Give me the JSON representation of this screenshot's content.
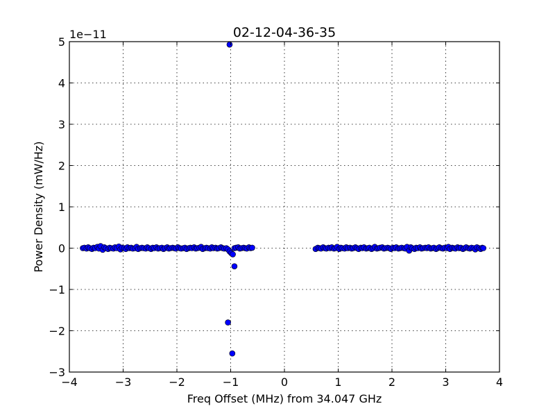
{
  "chart_data": {
    "type": "scatter",
    "title": "02-12-04-36-35",
    "xlabel": "Freq Offset (MHz) from 34.047 GHz",
    "ylabel": "Power Density (mW/Hz)",
    "y_offset_text": "1e−11",
    "xlim": [
      -4,
      4
    ],
    "ylim": [
      -3,
      5
    ],
    "x_ticks": [
      -4,
      -3,
      -2,
      -1,
      0,
      1,
      2,
      3,
      4
    ],
    "x_tick_labels": [
      "−4",
      "−3",
      "−2",
      "−1",
      "0",
      "1",
      "2",
      "3",
      "4"
    ],
    "y_ticks": [
      -3,
      -2,
      -1,
      0,
      1,
      2,
      3,
      4,
      5
    ],
    "y_tick_labels": [
      "−3",
      "−2",
      "−1",
      "0",
      "1",
      "2",
      "3",
      "4",
      "5"
    ],
    "grid": true,
    "marker_color": "#0000ff",
    "series": [
      {
        "x": [
          -3.75,
          -3.72,
          -3.68,
          -3.65,
          -3.62,
          -3.58,
          -3.55,
          -3.52,
          -3.48,
          -3.45,
          -3.42,
          -3.38,
          -3.35,
          -3.32,
          -3.28,
          -3.25,
          -3.22,
          -3.18,
          -3.15,
          -3.12,
          -3.08,
          -3.05,
          -3.02,
          -2.98,
          -2.95,
          -2.92,
          -2.88,
          -2.85,
          -2.82,
          -2.78,
          -2.75,
          -2.72,
          -2.68,
          -2.65,
          -2.62,
          -2.58,
          -2.55,
          -2.52,
          -2.48,
          -2.45,
          -2.42,
          -2.38,
          -2.35,
          -2.32,
          -2.28,
          -2.25,
          -2.22,
          -2.18,
          -2.15,
          -2.12,
          -2.08,
          -2.05,
          -2.02,
          -1.98,
          -1.95,
          -1.92,
          -1.88,
          -1.85,
          -1.82,
          -1.78,
          -1.75,
          -1.72,
          -1.68,
          -1.65,
          -1.62,
          -1.58,
          -1.55,
          -1.52,
          -1.48,
          -1.45,
          -1.42,
          -1.38,
          -1.35,
          -1.32,
          -1.28,
          -1.25,
          -1.22,
          -1.18,
          -1.15,
          -1.12,
          -1.08,
          -1.05,
          -1.02,
          -0.99,
          -0.96,
          -0.93,
          -0.9,
          -0.86,
          -0.83,
          -0.8,
          -0.76,
          -0.73,
          -0.7,
          -0.66,
          -0.63,
          -0.6,
          0.58,
          0.62,
          0.65,
          0.68,
          0.72,
          0.75,
          0.78,
          0.82,
          0.85,
          0.88,
          0.92,
          0.95,
          0.98,
          1.02,
          1.05,
          1.08,
          1.12,
          1.15,
          1.18,
          1.22,
          1.25,
          1.28,
          1.32,
          1.35,
          1.38,
          1.42,
          1.45,
          1.48,
          1.52,
          1.55,
          1.58,
          1.62,
          1.65,
          1.68,
          1.72,
          1.75,
          1.78,
          1.82,
          1.85,
          1.88,
          1.92,
          1.95,
          1.98,
          2.02,
          2.05,
          2.08,
          2.12,
          2.15,
          2.18,
          2.22,
          2.25,
          2.28,
          2.32,
          2.35,
          2.38,
          2.42,
          2.45,
          2.48,
          2.52,
          2.55,
          2.58,
          2.62,
          2.65,
          2.68,
          2.72,
          2.75,
          2.78,
          2.82,
          2.85,
          2.88,
          2.92,
          2.95,
          2.98,
          3.02,
          3.05,
          3.08,
          3.12,
          3.15,
          3.18,
          3.22,
          3.25,
          3.28,
          3.32,
          3.35,
          3.38,
          3.42,
          3.45,
          3.48,
          3.52,
          3.55,
          3.58,
          3.62,
          3.65,
          3.68,
          3.7,
          -1.02,
          -0.97,
          -1.05,
          -0.93
        ],
        "y": [
          0.0,
          0.01,
          -0.01,
          0.02,
          0.0,
          -0.02,
          0.01,
          0.0,
          0.03,
          -0.01,
          0.05,
          -0.04,
          0.02,
          0.0,
          -0.02,
          0.01,
          0.0,
          -0.01,
          0.02,
          0.0,
          0.04,
          -0.03,
          0.01,
          0.0,
          -0.02,
          0.02,
          0.0,
          0.01,
          -0.01,
          0.0,
          0.03,
          -0.02,
          0.0,
          0.01,
          0.0,
          -0.01,
          0.02,
          0.0,
          -0.02,
          0.01,
          0.0,
          0.02,
          -0.01,
          0.0,
          0.01,
          -0.02,
          0.0,
          0.02,
          -0.01,
          0.0,
          0.01,
          0.0,
          -0.01,
          0.02,
          0.0,
          -0.01,
          0.0,
          0.01,
          -0.02,
          0.0,
          0.01,
          0.0,
          0.02,
          -0.01,
          0.0,
          0.01,
          0.03,
          -0.02,
          0.0,
          0.01,
          0.0,
          -0.01,
          0.02,
          0.0,
          0.01,
          -0.01,
          0.0,
          0.02,
          0.0,
          -0.01,
          0.0,
          -0.03,
          -0.08,
          -0.12,
          -0.15,
          0.0,
          0.01,
          0.02,
          -0.01,
          0.0,
          0.01,
          0.0,
          -0.01,
          0.02,
          0.0,
          0.01,
          -0.02,
          0.01,
          0.0,
          -0.01,
          0.02,
          0.0,
          -0.01,
          0.01,
          0.0,
          0.02,
          -0.01,
          0.0,
          0.03,
          -0.02,
          0.01,
          0.0,
          -0.01,
          0.02,
          0.0,
          0.01,
          -0.01,
          0.0,
          0.02,
          0.0,
          -0.02,
          0.01,
          0.0,
          0.02,
          -0.01,
          0.0,
          0.01,
          -0.02,
          0.0,
          0.03,
          -0.01,
          0.0,
          0.01,
          0.02,
          -0.01,
          0.0,
          0.01,
          0.0,
          -0.02,
          0.01,
          0.0,
          0.02,
          -0.01,
          0.0,
          0.01,
          0.0,
          -0.01,
          0.03,
          -0.06,
          0.02,
          0.0,
          -0.02,
          0.01,
          0.0,
          0.02,
          -0.01,
          0.0,
          0.01,
          0.0,
          0.02,
          -0.01,
          0.0,
          0.01,
          -0.02,
          0.0,
          0.02,
          0.0,
          -0.01,
          0.01,
          0.0,
          0.03,
          -0.02,
          0.01,
          0.0,
          -0.01,
          0.02,
          0.0,
          0.01,
          -0.02,
          0.0,
          0.02,
          0.0,
          -0.01,
          0.01,
          0.0,
          -0.03,
          0.02,
          0.0,
          -0.02,
          0.01,
          0.0,
          4.93,
          -2.55,
          -1.8,
          -0.44
        ],
        "y_unit_multiplier": 1e-11
      }
    ]
  }
}
